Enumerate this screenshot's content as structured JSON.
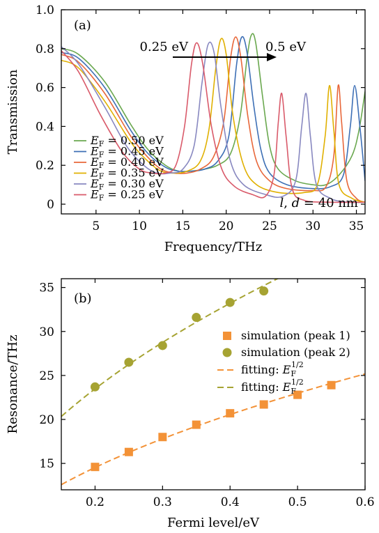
{
  "chart_data": [
    {
      "panel": "(a)",
      "type": "line",
      "xlabel": "Frequency/THz",
      "ylabel": "Transmission",
      "xlim": [
        1,
        36
      ],
      "ylim": [
        -0.05,
        1.0
      ],
      "x_ticks": [
        5,
        10,
        15,
        20,
        25,
        30,
        35
      ],
      "y_ticks": [
        0,
        0.2,
        0.4,
        0.6,
        0.8,
        1.0
      ],
      "x_tick_labels": [
        "5",
        "10",
        "15",
        "20",
        "25",
        "30",
        "35"
      ],
      "y_tick_labels": [
        "0",
        "0.2",
        "0.4",
        "0.6",
        "0.8",
        "1.0"
      ],
      "grid": false,
      "legend_position": "bottom-left",
      "annotations": {
        "arrow_start": "0.25 eV",
        "arrow_end": "0.5 eV",
        "structure": "l, d = 40 nm",
        "structure_italic": "l",
        "structure_rest": ", ",
        "structure_d": "d",
        "structure_eq": " = 40 nm"
      },
      "series": [
        {
          "name": "E_F = 0.50 eV",
          "legend_sub": "F",
          "legend_value": " = 0.50 eV",
          "color": "#6aa84f",
          "x": [
            1,
            3,
            6,
            9,
            11,
            13,
            14.5,
            16,
            17.5,
            19,
            20.5,
            21.6,
            22.4,
            22.9,
            23.4,
            24.2,
            25,
            26,
            28,
            30,
            31.5,
            33,
            34.5,
            35.3,
            36
          ],
          "y": [
            0.8,
            0.77,
            0.63,
            0.41,
            0.28,
            0.2,
            0.17,
            0.17,
            0.18,
            0.2,
            0.26,
            0.45,
            0.75,
            0.87,
            0.83,
            0.55,
            0.3,
            0.18,
            0.12,
            0.1,
            0.1,
            0.15,
            0.25,
            0.38,
            0.58
          ]
        },
        {
          "name": "E_F = 0.45 eV",
          "legend_sub": "F",
          "legend_value": " = 0.45 eV",
          "color": "#3d6fb5",
          "x": [
            1,
            3,
            6,
            9,
            11,
            13,
            14.5,
            16,
            17.5,
            19,
            20.3,
            21.2,
            21.8,
            22.4,
            23.2,
            24,
            25,
            27,
            30,
            32,
            33.5,
            34.3,
            34.8,
            35.4,
            36
          ],
          "y": [
            0.78,
            0.75,
            0.6,
            0.38,
            0.26,
            0.19,
            0.17,
            0.17,
            0.18,
            0.22,
            0.35,
            0.72,
            0.86,
            0.78,
            0.5,
            0.28,
            0.16,
            0.1,
            0.08,
            0.09,
            0.15,
            0.4,
            0.61,
            0.4,
            0.12
          ]
        },
        {
          "name": "E_F = 0.40 eV",
          "legend_sub": "F",
          "legend_value": " = 0.40 eV",
          "color": "#e8673a",
          "x": [
            1,
            3,
            6,
            9,
            11,
            12.5,
            14,
            15.5,
            17,
            18.5,
            19.7,
            20.5,
            21.1,
            21.7,
            22.5,
            23.5,
            25,
            27,
            30,
            31.5,
            32.4,
            32.9,
            33.3,
            33.9,
            35,
            36
          ],
          "y": [
            0.77,
            0.73,
            0.57,
            0.35,
            0.24,
            0.18,
            0.16,
            0.16,
            0.18,
            0.24,
            0.42,
            0.75,
            0.86,
            0.75,
            0.45,
            0.22,
            0.12,
            0.08,
            0.07,
            0.09,
            0.25,
            0.61,
            0.42,
            0.12,
            0.03,
            0.01
          ]
        },
        {
          "name": "E_F = 0.35 eV",
          "legend_sub": "F",
          "legend_value": " = 0.35 eV",
          "color": "#e0b000",
          "x": [
            1,
            3,
            6,
            9,
            11,
            12.5,
            14,
            15.5,
            17,
            18,
            18.8,
            19.4,
            20,
            20.8,
            22,
            23.5,
            26,
            29,
            30.5,
            31.4,
            31.9,
            32.4,
            33,
            34.5,
            36
          ],
          "y": [
            0.74,
            0.7,
            0.53,
            0.32,
            0.22,
            0.17,
            0.16,
            0.17,
            0.22,
            0.38,
            0.7,
            0.85,
            0.77,
            0.45,
            0.2,
            0.1,
            0.06,
            0.06,
            0.1,
            0.35,
            0.61,
            0.38,
            0.1,
            0.03,
            0.01
          ]
        },
        {
          "name": "E_F = 0.30 eV",
          "legend_sub": "F",
          "legend_value": " = 0.30 eV",
          "color": "#8888c0",
          "x": [
            1,
            3,
            6,
            8.5,
            10.5,
            12,
            13.5,
            15,
            16.3,
            17.2,
            17.9,
            18.6,
            19.4,
            20.5,
            22,
            24.5,
            26.5,
            28,
            28.7,
            29.2,
            29.7,
            30.4,
            32,
            34,
            36
          ],
          "y": [
            0.81,
            0.72,
            0.5,
            0.3,
            0.2,
            0.16,
            0.16,
            0.18,
            0.3,
            0.62,
            0.82,
            0.78,
            0.5,
            0.22,
            0.1,
            0.05,
            0.04,
            0.12,
            0.4,
            0.57,
            0.35,
            0.1,
            0.03,
            0.01,
            0.01
          ]
        },
        {
          "name": "E_F = 0.25 eV",
          "legend_sub": "F",
          "legend_value": " = 0.25 eV",
          "color": "#d95a6a",
          "x": [
            1,
            3,
            5.5,
            8,
            10,
            11.5,
            13,
            14.2,
            15.2,
            16,
            16.6,
            17.3,
            18.3,
            19.5,
            21,
            23,
            24.5,
            25.5,
            26,
            26.4,
            26.9,
            27.6,
            29,
            32,
            36
          ],
          "y": [
            0.79,
            0.68,
            0.46,
            0.27,
            0.18,
            0.16,
            0.16,
            0.2,
            0.4,
            0.72,
            0.83,
            0.72,
            0.4,
            0.18,
            0.09,
            0.05,
            0.04,
            0.15,
            0.42,
            0.57,
            0.35,
            0.08,
            0.02,
            0.01,
            0.01
          ]
        }
      ]
    },
    {
      "panel": "(b)",
      "type": "scatter",
      "xlabel": "Fermi level/eV",
      "ylabel": "Resonance/THz",
      "xlim": [
        0.15,
        0.6
      ],
      "ylim": [
        12,
        36
      ],
      "x_ticks": [
        0.2,
        0.3,
        0.4,
        0.5,
        0.6
      ],
      "y_ticks": [
        15,
        20,
        25,
        30,
        35
      ],
      "x_tick_labels": [
        "0.2",
        "0.3",
        "0.4",
        "0.5",
        "0.6"
      ],
      "y_tick_labels": [
        "15",
        "20",
        "25",
        "30",
        "35"
      ],
      "grid": false,
      "legend_position": "center-right",
      "series": [
        {
          "name": "simulation (peak 1)",
          "marker": "square",
          "color": "#f39237",
          "x": [
            0.2,
            0.25,
            0.3,
            0.35,
            0.4,
            0.45,
            0.5,
            0.55
          ],
          "y": [
            14.6,
            16.3,
            18.0,
            19.4,
            20.7,
            21.7,
            22.8,
            23.9
          ]
        },
        {
          "name": "simulation (peak 2)",
          "marker": "circle",
          "color": "#a6a332",
          "x": [
            0.2,
            0.25,
            0.3,
            0.35,
            0.4,
            0.45
          ],
          "y": [
            23.7,
            26.5,
            28.4,
            31.6,
            33.3,
            34.6
          ]
        },
        {
          "name": "fitting: E_F^1/2",
          "legend_prefix": "fitting: ",
          "legend_sub": "F",
          "legend_sup": "1/2",
          "style": "dashed",
          "color": "#f39237",
          "fit_coefficient": 32.5
        },
        {
          "name": "fitting: E_F^1/2",
          "legend_prefix": "fitting: ",
          "legend_sub": "F",
          "legend_sup": "1/2",
          "style": "dashed",
          "color": "#a6a332",
          "fit_coefficient": 52.5
        }
      ]
    }
  ]
}
